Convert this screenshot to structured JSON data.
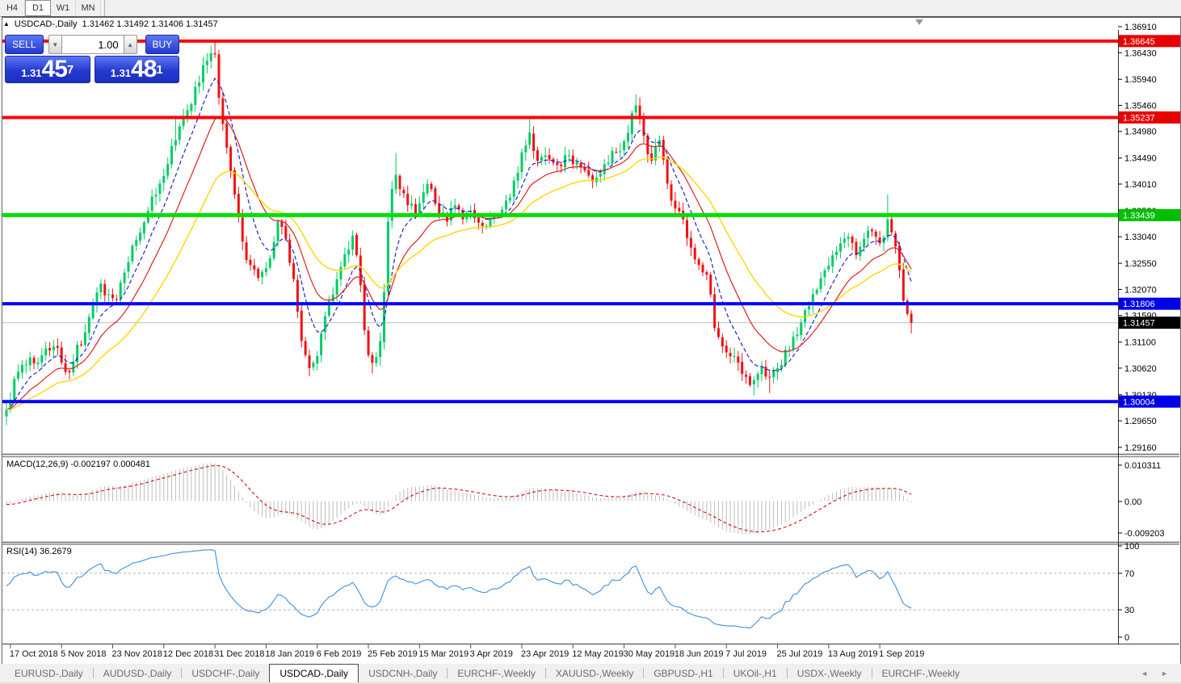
{
  "toolbar": {
    "timeframes": [
      {
        "label": "H4",
        "active": false
      },
      {
        "label": "D1",
        "active": true
      },
      {
        "label": "W1",
        "active": false
      },
      {
        "label": "MN",
        "active": false
      }
    ]
  },
  "title": {
    "marker": "▲",
    "symbol": "USDCAD-,Daily",
    "ohlc": "1.31462 1.31492 1.31406 1.31457"
  },
  "trade_panel": {
    "sell_label": "SELL",
    "buy_label": "BUY",
    "volume": "1.00",
    "spin_down": "▼",
    "spin_up": "▲",
    "sell_price": {
      "prefix": "1.31",
      "main": "45",
      "sup": "7"
    },
    "buy_price": {
      "prefix": "1.31",
      "main": "48",
      "sup": "1"
    }
  },
  "chart_data": {
    "type": "candlestick",
    "symbol": "USDCAD-",
    "timeframe": "Daily",
    "candle_count": 231,
    "colors": {
      "bull": "#00CC66",
      "bear": "#F21111",
      "ma_fast": "#2222CC",
      "ma_mid": "#E02020",
      "ma_slow": "#FFD700",
      "current_line": "#c0c0c0"
    },
    "y_ticks": [
      "1.36910",
      "1.36430",
      "1.35940",
      "1.35460",
      "1.34980",
      "1.34490",
      "1.34010",
      "1.33520",
      "1.33040",
      "1.32550",
      "1.32070",
      "1.31590",
      "1.31100",
      "1.30620",
      "1.30130",
      "1.29650",
      "1.29160"
    ],
    "x_labels": [
      "17 Oct 2018",
      "5 Nov 2018",
      "23 Nov 2018",
      "12 Dec 2018",
      "31 Dec 2018",
      "18 Jan 2019",
      "6 Feb 2019",
      "25 Feb 2019",
      "15 Mar 2019",
      "3 Apr 2019",
      "23 Apr 2019",
      "12 May 2019",
      "30 May 2019",
      "18 Jun 2019",
      "7 Jul 2019",
      "25 Jul 2019",
      "13 Aug 2019",
      "1 Sep 2019"
    ],
    "x_label_every": 13,
    "price_path_anchors": [
      [
        0,
        1.2985
      ],
      [
        2,
        1.3042
      ],
      [
        4,
        1.3068
      ],
      [
        6,
        1.3082
      ],
      [
        8,
        1.3072
      ],
      [
        10,
        1.3098
      ],
      [
        12,
        1.3102
      ],
      [
        14,
        1.3072
      ],
      [
        16,
        1.3054
      ],
      [
        18,
        1.3105
      ],
      [
        20,
        1.3128
      ],
      [
        22,
        1.3178
      ],
      [
        24,
        1.3218
      ],
      [
        26,
        1.3198
      ],
      [
        28,
        1.3188
      ],
      [
        30,
        1.3238
      ],
      [
        33,
        1.3298
      ],
      [
        36,
        1.3352
      ],
      [
        39,
        1.3402
      ],
      [
        41,
        1.3438
      ],
      [
        43,
        1.3482
      ],
      [
        45,
        1.3525
      ],
      [
        47,
        1.3548
      ],
      [
        49,
        1.3588
      ],
      [
        51,
        1.3628
      ],
      [
        53,
        1.364
      ],
      [
        54,
        1.356
      ],
      [
        55,
        1.3512
      ],
      [
        56,
        1.3468
      ],
      [
        57,
        1.3425
      ],
      [
        58,
        1.3382
      ],
      [
        59,
        1.334
      ],
      [
        60,
        1.3295
      ],
      [
        62,
        1.3252
      ],
      [
        64,
        1.3228
      ],
      [
        66,
        1.3246
      ],
      [
        68,
        1.3294
      ],
      [
        69,
        1.3332
      ],
      [
        70,
        1.3322
      ],
      [
        71,
        1.33
      ],
      [
        72,
        1.3256
      ],
      [
        73,
        1.3226
      ],
      [
        74,
        1.3166
      ],
      [
        75,
        1.3112
      ],
      [
        76,
        1.3086
      ],
      [
        77,
        1.3062
      ],
      [
        78,
        1.3072
      ],
      [
        79,
        1.3084
      ],
      [
        80,
        1.3126
      ],
      [
        82,
        1.3186
      ],
      [
        84,
        1.3226
      ],
      [
        86,
        1.3272
      ],
      [
        88,
        1.3306
      ],
      [
        90,
        1.3215
      ],
      [
        91,
        1.3132
      ],
      [
        92,
        1.3086
      ],
      [
        93,
        1.3072
      ],
      [
        94,
        1.3082
      ],
      [
        95,
        1.3112
      ],
      [
        96,
        1.3202
      ],
      [
        97,
        1.3332
      ],
      [
        98,
        1.3392
      ],
      [
        99,
        1.3418
      ],
      [
        100,
        1.3392
      ],
      [
        102,
        1.3362
      ],
      [
        104,
        1.3346
      ],
      [
        106,
        1.3386
      ],
      [
        108,
        1.3392
      ],
      [
        110,
        1.3346
      ],
      [
        112,
        1.3332
      ],
      [
        114,
        1.3362
      ],
      [
        116,
        1.3336
      ],
      [
        118,
        1.3352
      ],
      [
        120,
        1.333
      ],
      [
        122,
        1.3324
      ],
      [
        124,
        1.3342
      ],
      [
        126,
        1.3354
      ],
      [
        128,
        1.3376
      ],
      [
        130,
        1.3422
      ],
      [
        132,
        1.3472
      ],
      [
        133,
        1.3496
      ],
      [
        134,
        1.3462
      ],
      [
        135,
        1.3444
      ],
      [
        137,
        1.3454
      ],
      [
        139,
        1.344
      ],
      [
        141,
        1.3434
      ],
      [
        143,
        1.3454
      ],
      [
        145,
        1.3442
      ],
      [
        147,
        1.3426
      ],
      [
        149,
        1.3406
      ],
      [
        151,
        1.342
      ],
      [
        153,
        1.344
      ],
      [
        155,
        1.346
      ],
      [
        157,
        1.348
      ],
      [
        159,
        1.3532
      ],
      [
        160,
        1.3546
      ],
      [
        161,
        1.3522
      ],
      [
        162,
        1.349
      ],
      [
        163,
        1.3456
      ],
      [
        164,
        1.3444
      ],
      [
        165,
        1.347
      ],
      [
        166,
        1.3482
      ],
      [
        167,
        1.3446
      ],
      [
        168,
        1.3402
      ],
      [
        170,
        1.3356
      ],
      [
        172,
        1.3336
      ],
      [
        174,
        1.3284
      ],
      [
        176,
        1.3252
      ],
      [
        178,
        1.3234
      ],
      [
        180,
        1.3136
      ],
      [
        182,
        1.3102
      ],
      [
        184,
        1.3084
      ],
      [
        186,
        1.3072
      ],
      [
        188,
        1.3046
      ],
      [
        190,
        1.304
      ],
      [
        192,
        1.3064
      ],
      [
        194,
        1.3046
      ],
      [
        196,
        1.3062
      ],
      [
        198,
        1.3096
      ],
      [
        200,
        1.312
      ],
      [
        202,
        1.3146
      ],
      [
        204,
        1.3176
      ],
      [
        206,
        1.3206
      ],
      [
        208,
        1.3242
      ],
      [
        210,
        1.327
      ],
      [
        212,
        1.3292
      ],
      [
        214,
        1.3304
      ],
      [
        216,
        1.327
      ],
      [
        218,
        1.33
      ],
      [
        220,
        1.3314
      ],
      [
        222,
        1.3292
      ],
      [
        224,
        1.3336
      ],
      [
        225,
        1.3312
      ],
      [
        226,
        1.3286
      ],
      [
        227,
        1.3242
      ],
      [
        228,
        1.3186
      ],
      [
        229,
        1.3162
      ],
      [
        230,
        1.31457
      ]
    ],
    "wick_extremes": [
      {
        "i": 43,
        "hi": 1.3527
      },
      {
        "i": 51,
        "hi": 1.3642
      },
      {
        "i": 52,
        "hi": 1.3656
      },
      {
        "i": 53,
        "hi": 1.36645
      },
      {
        "i": 54,
        "hi": 1.3648
      },
      {
        "i": 77,
        "lo": 1.3047
      },
      {
        "i": 93,
        "lo": 1.3052
      },
      {
        "i": 99,
        "hi": 1.3458
      },
      {
        "i": 133,
        "hi": 1.3521
      },
      {
        "i": 160,
        "hi": 1.3566
      },
      {
        "i": 190,
        "lo": 1.3012
      },
      {
        "i": 194,
        "lo": 1.3016
      },
      {
        "i": 224,
        "hi": 1.3382
      },
      {
        "i": 230,
        "lo": 1.3126
      }
    ],
    "levels": [
      {
        "price": 1.36645,
        "label": "1.36645",
        "color": "#FF0000",
        "badge": "#E80000",
        "width": 4
      },
      {
        "price": 1.35237,
        "label": "1.35237",
        "color": "#FF0000",
        "badge": "#E80000",
        "width": 4
      },
      {
        "price": 1.33439,
        "label": "1.33439",
        "color": "#00E000",
        "badge": "#00BE00",
        "width": 5
      },
      {
        "price": 1.31806,
        "label": "1.31806",
        "color": "#0000FF",
        "badge": "#0000E8",
        "width": 4
      },
      {
        "price": 1.30004,
        "label": "1.30004",
        "color": "#0000FF",
        "badge": "#0000E8",
        "width": 4
      }
    ],
    "current_price": {
      "value": 1.31457,
      "label": "1.31457",
      "badge": "#000000"
    },
    "moving_averages": [
      {
        "name": "fast",
        "period": 8,
        "dashed": true
      },
      {
        "name": "medium",
        "period": 17,
        "dashed": false
      },
      {
        "name": "slow",
        "period": 34,
        "dashed": false
      }
    ],
    "macd": {
      "label": "MACD(12,26,9) -0.002197 0.000481",
      "params": [
        12,
        26,
        9
      ],
      "value": -0.002197,
      "signal_value": 0.000481,
      "axis": [
        "0.010311",
        "0.00",
        "-0.009203"
      ],
      "hist_color": "#BDBDBD",
      "signal_color": "#D01010"
    },
    "rsi": {
      "label": "RSI(14) 36.2679",
      "period": 14,
      "value": 36.2679,
      "axis": [
        "100",
        "70",
        "30",
        "0"
      ],
      "guide_levels": [
        70,
        30
      ],
      "color": "#3E8EDE"
    }
  },
  "tabs": {
    "items": [
      {
        "label": "EURUSD-,Daily",
        "active": false
      },
      {
        "label": "AUDUSD-,Daily",
        "active": false
      },
      {
        "label": "USDCHF-,Daily",
        "active": false
      },
      {
        "label": "USDCAD-,Daily",
        "active": true
      },
      {
        "label": "USDCNH-,Daily",
        "active": false
      },
      {
        "label": "EURCHF-,Weekly",
        "active": false
      },
      {
        "label": "XAUUSD-,Weekly",
        "active": false
      },
      {
        "label": "GBPUSD-,H1",
        "active": false
      },
      {
        "label": "UKOil-,H1",
        "active": false
      },
      {
        "label": "USDX-,Weekly",
        "active": false
      },
      {
        "label": "EURCHF-,Weekly",
        "active": false
      }
    ],
    "prev_arrow": "◄",
    "next_arrow": "►"
  }
}
